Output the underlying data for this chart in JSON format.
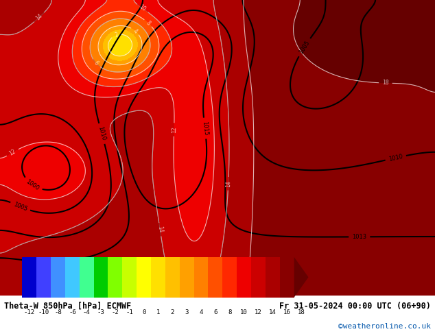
{
  "title_left": "Theta-W 850hPa [hPa] ECMWF",
  "title_right": "Fr 31-05-2024 00:00 UTC (06+90)",
  "credit": "©weatheronline.co.uk",
  "colorbar_ticks": [
    -12,
    -10,
    -8,
    -6,
    -4,
    -3,
    -2,
    -1,
    0,
    1,
    2,
    3,
    4,
    6,
    8,
    10,
    12,
    14,
    16,
    18
  ],
  "colorbar_colors": [
    "#6060ff",
    "#4080ff",
    "#40b0ff",
    "#40e0ff",
    "#40ffb0",
    "#40ff40",
    "#80ff00",
    "#c0ff00",
    "#ffff00",
    "#ffe000",
    "#ffc000",
    "#ffa000",
    "#ff8000",
    "#ff6000",
    "#ff4000",
    "#ff2000",
    "#e00000",
    "#c00000",
    "#a00000",
    "#800000"
  ],
  "bg_color": "#d0d0d0",
  "map_bg_color": "#c8c8c8",
  "fig_width": 6.34,
  "fig_height": 4.9,
  "dpi": 100
}
